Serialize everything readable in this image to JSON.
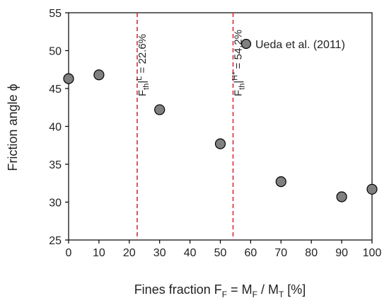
{
  "chart_data": {
    "type": "scatter",
    "xlabel": {
      "main": "Fines fraction F",
      "sub_f": "F",
      "mid": " = M",
      "sub_m": "F",
      "sep": " / M",
      "sub_t": "T",
      "unit": " [%]"
    },
    "ylabel": "Friction angle ϕ",
    "xlim": [
      0,
      100
    ],
    "ylim": [
      25,
      55
    ],
    "xticks": [
      "0",
      "10",
      "20",
      "30",
      "40",
      "50",
      "60",
      "70",
      "80",
      "90",
      "100"
    ],
    "yticks": [
      "25",
      "30",
      "35",
      "40",
      "45",
      "50",
      "55"
    ],
    "grid": false,
    "legend_position": "top-right",
    "series": [
      {
        "name": "Ueda et al. (2011)",
        "color": "#808080",
        "x": [
          0,
          10,
          30,
          50,
          70,
          90,
          100
        ],
        "y": [
          46.3,
          46.8,
          42.2,
          37.7,
          32.7,
          30.7,
          31.7
        ]
      }
    ],
    "threshold_lines": [
      {
        "x": 22.6,
        "color": "#e8262a",
        "label_f": "F",
        "label_sub": "th",
        "label_sup": "L",
        "label_rest": " = 22.6%"
      },
      {
        "x": 54.2,
        "color": "#e8262a",
        "label_f": "F",
        "label_sub": "th",
        "label_sup": "H*",
        "label_rest": " = 54.2%"
      }
    ]
  }
}
